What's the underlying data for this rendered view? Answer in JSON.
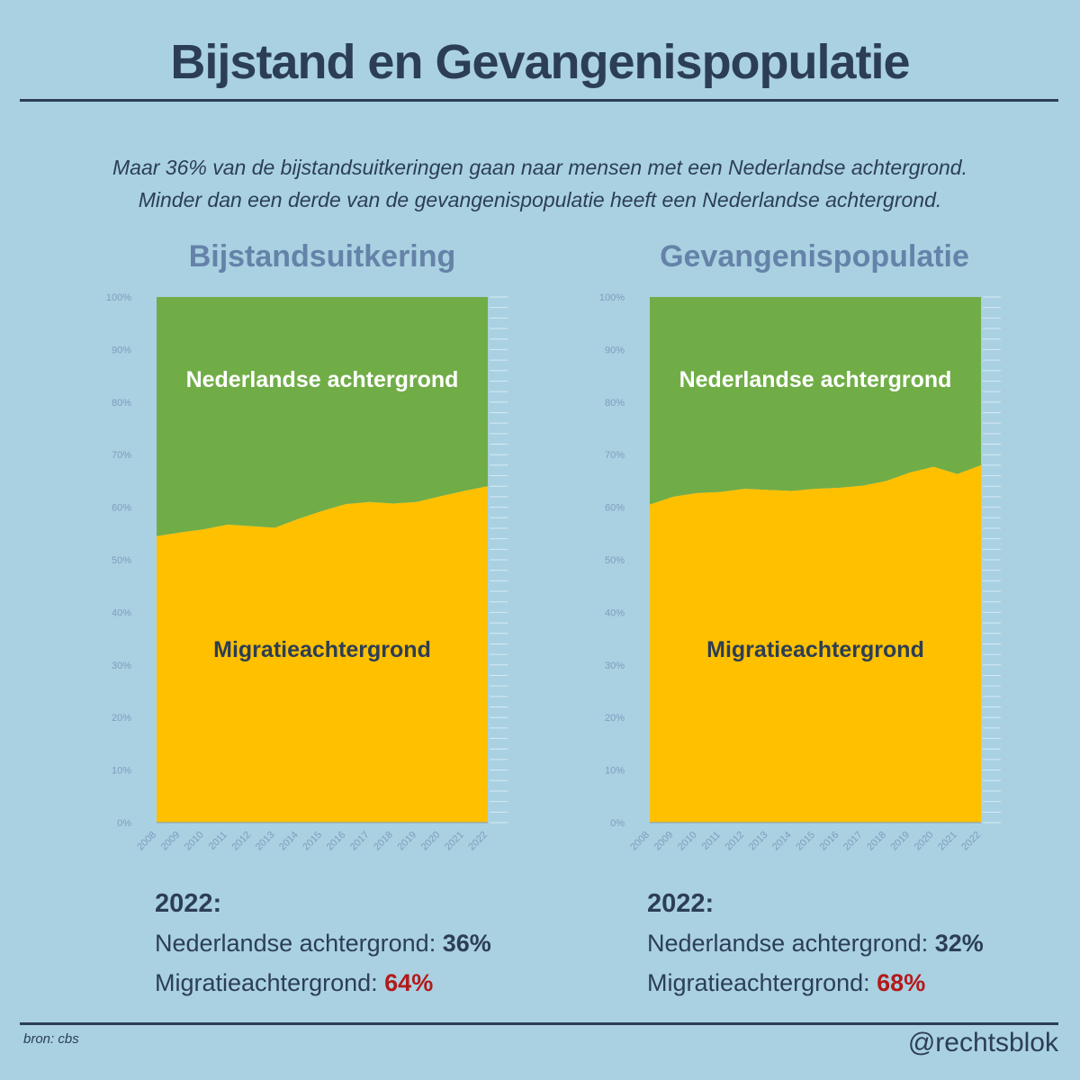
{
  "title": "Bijstand en Gevangenispopulatie",
  "subtitle": {
    "line1": "Maar 36% van de bijstandsuitkeringen gaan naar mensen met een Nederlandse achtergrond.",
    "line2": "Minder dan een derde van de gevangenispopulatie heeft een Nederlandse achtergrond."
  },
  "colors": {
    "background": "#a9d1e2",
    "dutch_area": "#70ad47",
    "migration_area": "#ffc000",
    "title_text": "#2c3e55",
    "chart_title": "#6583a8",
    "axis_text": "#7f9dbd",
    "highlight": "#b21a1a"
  },
  "chart_data": [
    {
      "type": "area",
      "stacked": true,
      "title": "Bijstandsuitkering",
      "x": [
        "2008",
        "2009",
        "2010",
        "2011",
        "2012",
        "2013",
        "2014",
        "2015",
        "2016",
        "2017",
        "2018",
        "2019",
        "2020",
        "2021",
        "2022"
      ],
      "yticks": [
        "0%",
        "10%",
        "20%",
        "30%",
        "40%",
        "50%",
        "60%",
        "70%",
        "80%",
        "90%",
        "100%"
      ],
      "ylim": [
        0,
        100
      ],
      "series": [
        {
          "name": "Migratieachtergrond",
          "values": [
            54.5,
            55.2,
            55.8,
            56.7,
            56.4,
            56.1,
            57.8,
            59.3,
            60.6,
            61.0,
            60.7,
            61.0,
            62.1,
            63.1,
            64.0
          ]
        },
        {
          "name": "Nederlandse achtergrond",
          "values": [
            45.5,
            44.8,
            44.2,
            43.3,
            43.6,
            43.9,
            42.2,
            40.7,
            39.4,
            39.0,
            39.3,
            39.0,
            37.9,
            36.9,
            36.0
          ]
        }
      ],
      "summary": {
        "year": "2022:",
        "dutch_label": "Nederlandse achtergrond:",
        "dutch_value": "36%",
        "migration_label": "Migratieachtergrond:",
        "migration_value": "64%"
      }
    },
    {
      "type": "area",
      "stacked": true,
      "title": "Gevangenispopulatie",
      "x": [
        "2008",
        "2009",
        "2010",
        "2011",
        "2012",
        "2013",
        "2014",
        "2015",
        "2016",
        "2017",
        "2018",
        "2019",
        "2020",
        "2021",
        "2022"
      ],
      "yticks": [
        "0%",
        "10%",
        "20%",
        "30%",
        "40%",
        "50%",
        "60%",
        "70%",
        "80%",
        "90%",
        "100%"
      ],
      "ylim": [
        0,
        100
      ],
      "series": [
        {
          "name": "Migratieachtergrond",
          "values": [
            60.5,
            62.0,
            62.7,
            62.9,
            63.5,
            63.3,
            63.1,
            63.5,
            63.7,
            64.1,
            65.0,
            66.6,
            67.7,
            66.3,
            68.0
          ]
        },
        {
          "name": "Nederlandse achtergrond",
          "values": [
            39.5,
            38.0,
            37.3,
            37.1,
            36.5,
            36.7,
            36.9,
            36.5,
            36.3,
            35.9,
            35.0,
            33.4,
            32.3,
            33.7,
            32.0
          ]
        }
      ],
      "summary": {
        "year": "2022:",
        "dutch_label": "Nederlandse achtergrond:",
        "dutch_value": "32%",
        "migration_label": "Migratieachtergrond:",
        "migration_value": "68%"
      }
    }
  ],
  "footer": {
    "source": "bron: cbs",
    "handle": "@rechtsblok"
  }
}
